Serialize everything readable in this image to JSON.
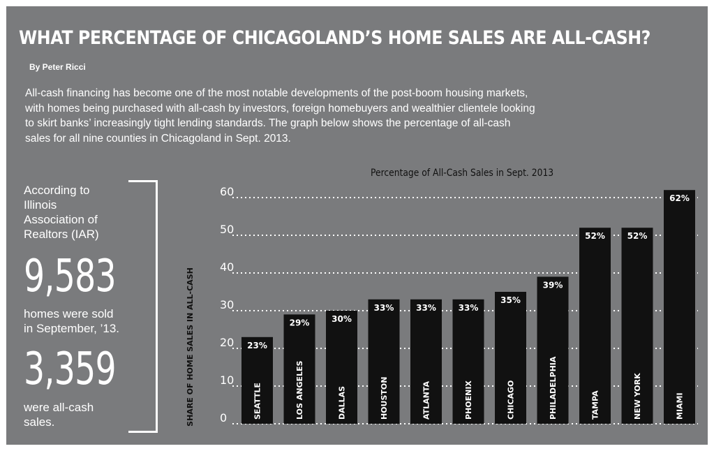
{
  "header": {
    "title": "WHAT PERCENTAGE OF CHICAGOLAND’S HOME SALES ARE ALL-CASH?",
    "byline": "By Peter Ricci",
    "intro": "All-cash financing has become one of the most notable developments of the post-boom housing markets, with homes being purchased with all-cash by investors, foreign homebuyers and wealthier clientele looking to skirt banks’ increasingly tight lending standards. The graph below shows the percentage of all-cash sales for all nine counties in Chicagoland in Sept. 2013."
  },
  "stats": {
    "source_text": "According to\nIllinois\nAssociation of\nRealtors (IAR)",
    "homes_sold": "9,583",
    "homes_sold_text": "homes were sold\nin September, ’13.",
    "all_cash": "3,359",
    "all_cash_text": "were all-cash\nsales."
  },
  "colors": {
    "panel": "#7a7b7d",
    "bar": "#111111",
    "text": "#ffffff"
  },
  "chart_data": {
    "type": "bar",
    "title": "Percentage of All-Cash Sales in Sept. 2013",
    "ylabel": "SHARE OF HOME SALES IN ALL-CASH",
    "xlabel": "",
    "ylim": [
      0,
      60
    ],
    "yticks": [
      0,
      10,
      20,
      30,
      40,
      50,
      60
    ],
    "grid": true,
    "categories": [
      "SEATTLE",
      "LOS ANGELES",
      "DALLAS",
      "HOUSTON",
      "ATLANTA",
      "PHOENIX",
      "CHICAGO",
      "PHILADELPHIA",
      "TAMPA",
      "NEW YORK",
      "MIAMI"
    ],
    "values": [
      23,
      29,
      30,
      33,
      33,
      33,
      35,
      39,
      52,
      52,
      62
    ],
    "value_labels": [
      "23%",
      "29%",
      "30%",
      "33%",
      "33%",
      "33%",
      "35%",
      "39%",
      "52%",
      "52%",
      "62%"
    ]
  }
}
